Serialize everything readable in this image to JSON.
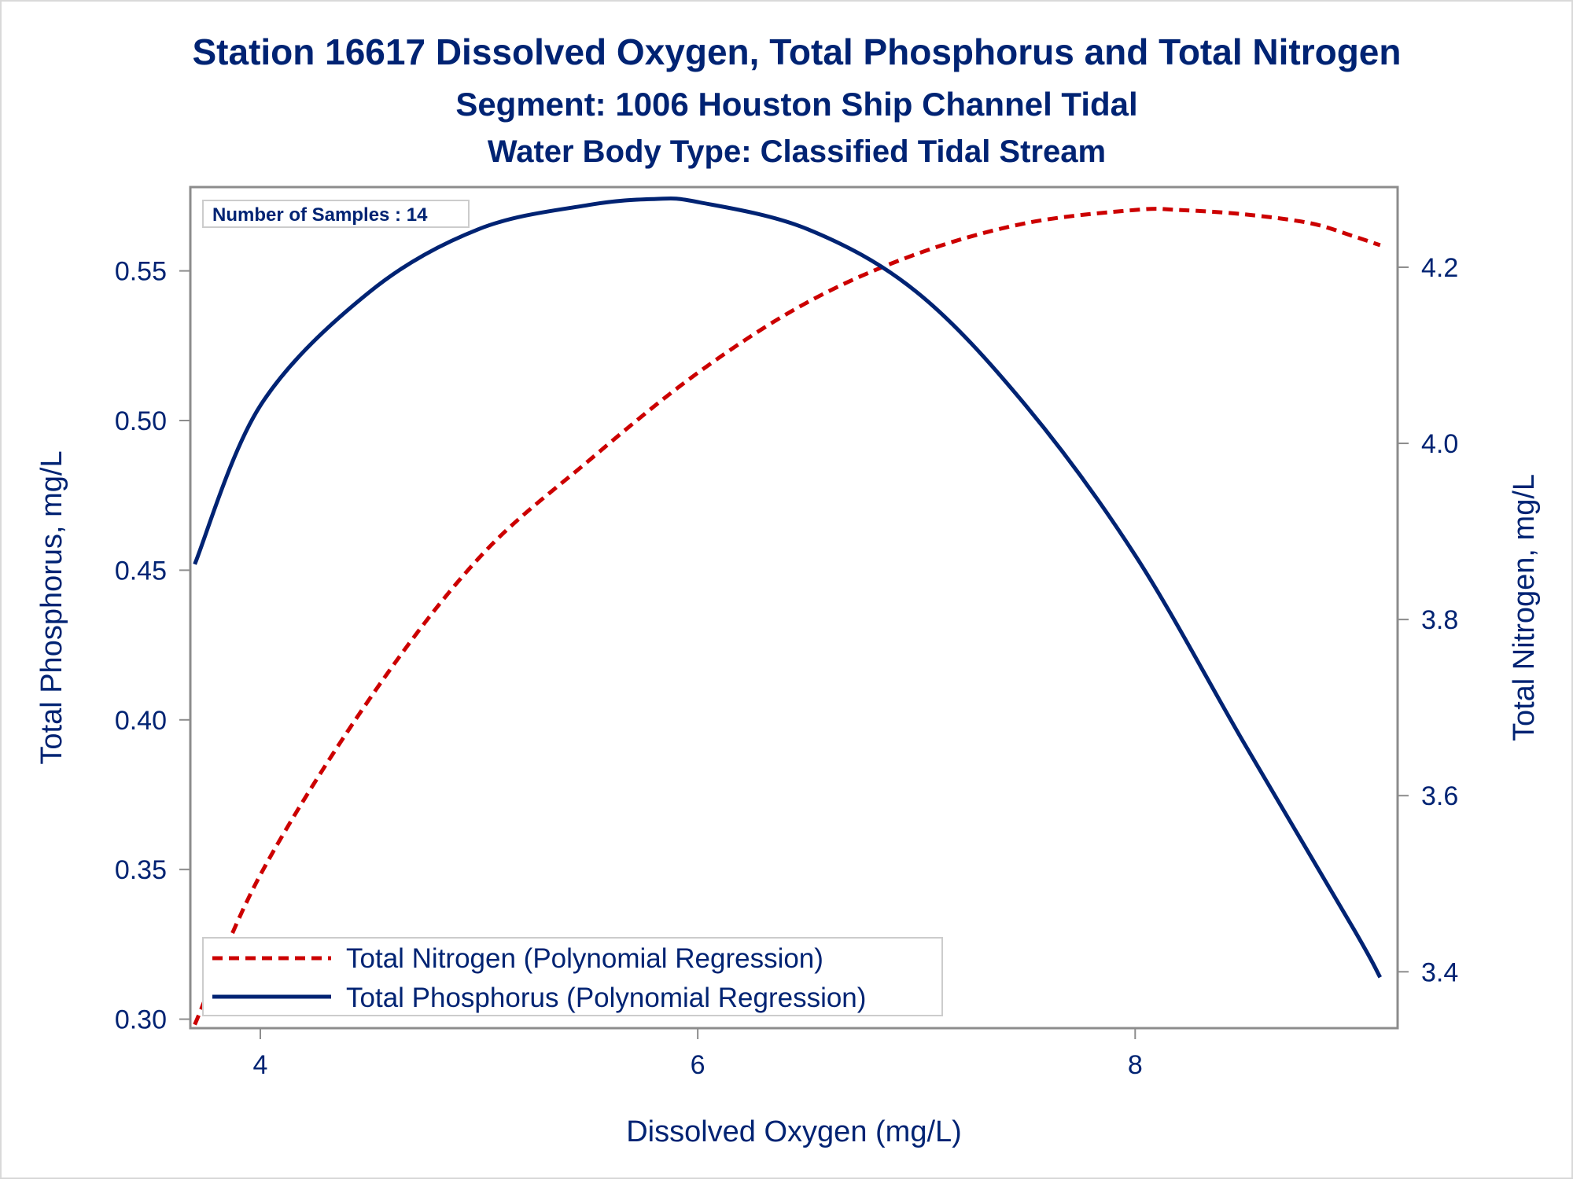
{
  "colors": {
    "title": "#002373",
    "text": "#002373",
    "axis": "#8c8c8c",
    "phosphorus": "#002373",
    "nitrogen": "#cc0000",
    "frame": "#d9d9d9"
  },
  "chart_data": {
    "type": "line",
    "title": "Station 16617  Dissolved Oxygen, Total Phosphorus and Total Nitrogen",
    "subtitle": "Segment: 1006  Houston Ship Channel Tidal",
    "subtitle2": "Water Body Type: Classified Tidal Stream",
    "xlabel": "Dissolved Oxygen (mg/L)",
    "ylabel": "Total Phosphorus, mg/L",
    "y2label": "Total Nitrogen, mg/L",
    "xlim": [
      3.68,
      9.2
    ],
    "ylim": [
      0.297,
      0.578
    ],
    "y2lim": [
      3.336,
      4.291
    ],
    "xticks": [
      {
        "v": 4,
        "label": "4"
      },
      {
        "v": 6,
        "label": "6"
      },
      {
        "v": 8,
        "label": "8"
      }
    ],
    "yticks": [
      {
        "v": 0.3,
        "label": "0.30"
      },
      {
        "v": 0.35,
        "label": "0.35"
      },
      {
        "v": 0.4,
        "label": "0.40"
      },
      {
        "v": 0.45,
        "label": "0.45"
      },
      {
        "v": 0.5,
        "label": "0.50"
      },
      {
        "v": 0.55,
        "label": "0.55"
      }
    ],
    "y2ticks": [
      {
        "v": 3.4,
        "label": "3.4"
      },
      {
        "v": 3.6,
        "label": "3.6"
      },
      {
        "v": 3.8,
        "label": "3.8"
      },
      {
        "v": 4.0,
        "label": "4.0"
      },
      {
        "v": 4.2,
        "label": "4.2"
      }
    ],
    "inset_label": "Number of Samples : 14",
    "grid": false,
    "legend_position": "bottom-left inside",
    "series": [
      {
        "name": "Total Nitrogen (Polynomial Regression)",
        "axis": "right",
        "style": "dashed",
        "x": [
          3.7,
          4.0,
          4.5,
          5.0,
          5.5,
          6.0,
          6.5,
          7.0,
          7.5,
          8.0,
          8.2,
          8.5,
          8.8,
          9.0,
          9.12
        ],
        "y": [
          3.34,
          3.51,
          3.71,
          3.87,
          3.98,
          4.08,
          4.16,
          4.215,
          4.25,
          4.265,
          4.265,
          4.26,
          4.25,
          4.235,
          4.225
        ]
      },
      {
        "name": "Total Phosphorus (Polynomial Regression)",
        "axis": "left",
        "style": "solid",
        "x": [
          3.7,
          4.0,
          4.5,
          5.0,
          5.5,
          5.8,
          6.0,
          6.5,
          7.0,
          7.5,
          8.0,
          8.5,
          9.0,
          9.12
        ],
        "y": [
          0.452,
          0.505,
          0.543,
          0.564,
          0.572,
          0.574,
          0.573,
          0.564,
          0.543,
          0.505,
          0.455,
          0.392,
          0.33,
          0.314
        ]
      }
    ]
  }
}
